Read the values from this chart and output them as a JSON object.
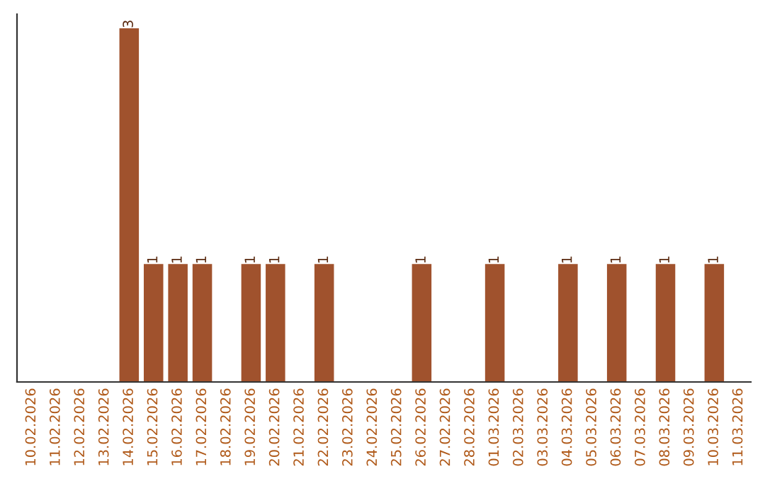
{
  "chart_data": {
    "type": "bar",
    "categories": [
      "10.02.2026",
      "11.02.2026",
      "12.02.2026",
      "13.02.2026",
      "14.02.2026",
      "15.02.2026",
      "16.02.2026",
      "17.02.2026",
      "18.02.2026",
      "19.02.2026",
      "20.02.2026",
      "21.02.2026",
      "22.02.2026",
      "23.02.2026",
      "24.02.2026",
      "25.02.2026",
      "26.02.2026",
      "27.02.2026",
      "28.02.2026",
      "01.03.2026",
      "02.03.2026",
      "03.03.2026",
      "04.03.2026",
      "05.03.2026",
      "06.03.2026",
      "07.03.2026",
      "08.03.2026",
      "09.03.2026",
      "10.03.2026",
      "11.03.2026"
    ],
    "values": [
      0,
      0,
      0,
      0,
      3,
      1,
      1,
      1,
      0,
      1,
      1,
      0,
      1,
      0,
      0,
      0,
      1,
      0,
      0,
      1,
      0,
      0,
      1,
      0,
      1,
      0,
      1,
      0,
      1,
      0
    ],
    "value_labels": [
      null,
      null,
      null,
      null,
      "3",
      "1",
      "1",
      "1",
      null,
      "1",
      "1",
      null,
      "1",
      null,
      null,
      null,
      "1",
      null,
      null,
      "1",
      null,
      null,
      "1",
      null,
      "1",
      null,
      "1",
      null,
      "1",
      null
    ],
    "color": "#a0522d",
    "grid": false,
    "legend": false,
    "tick_labels": "x"
  }
}
